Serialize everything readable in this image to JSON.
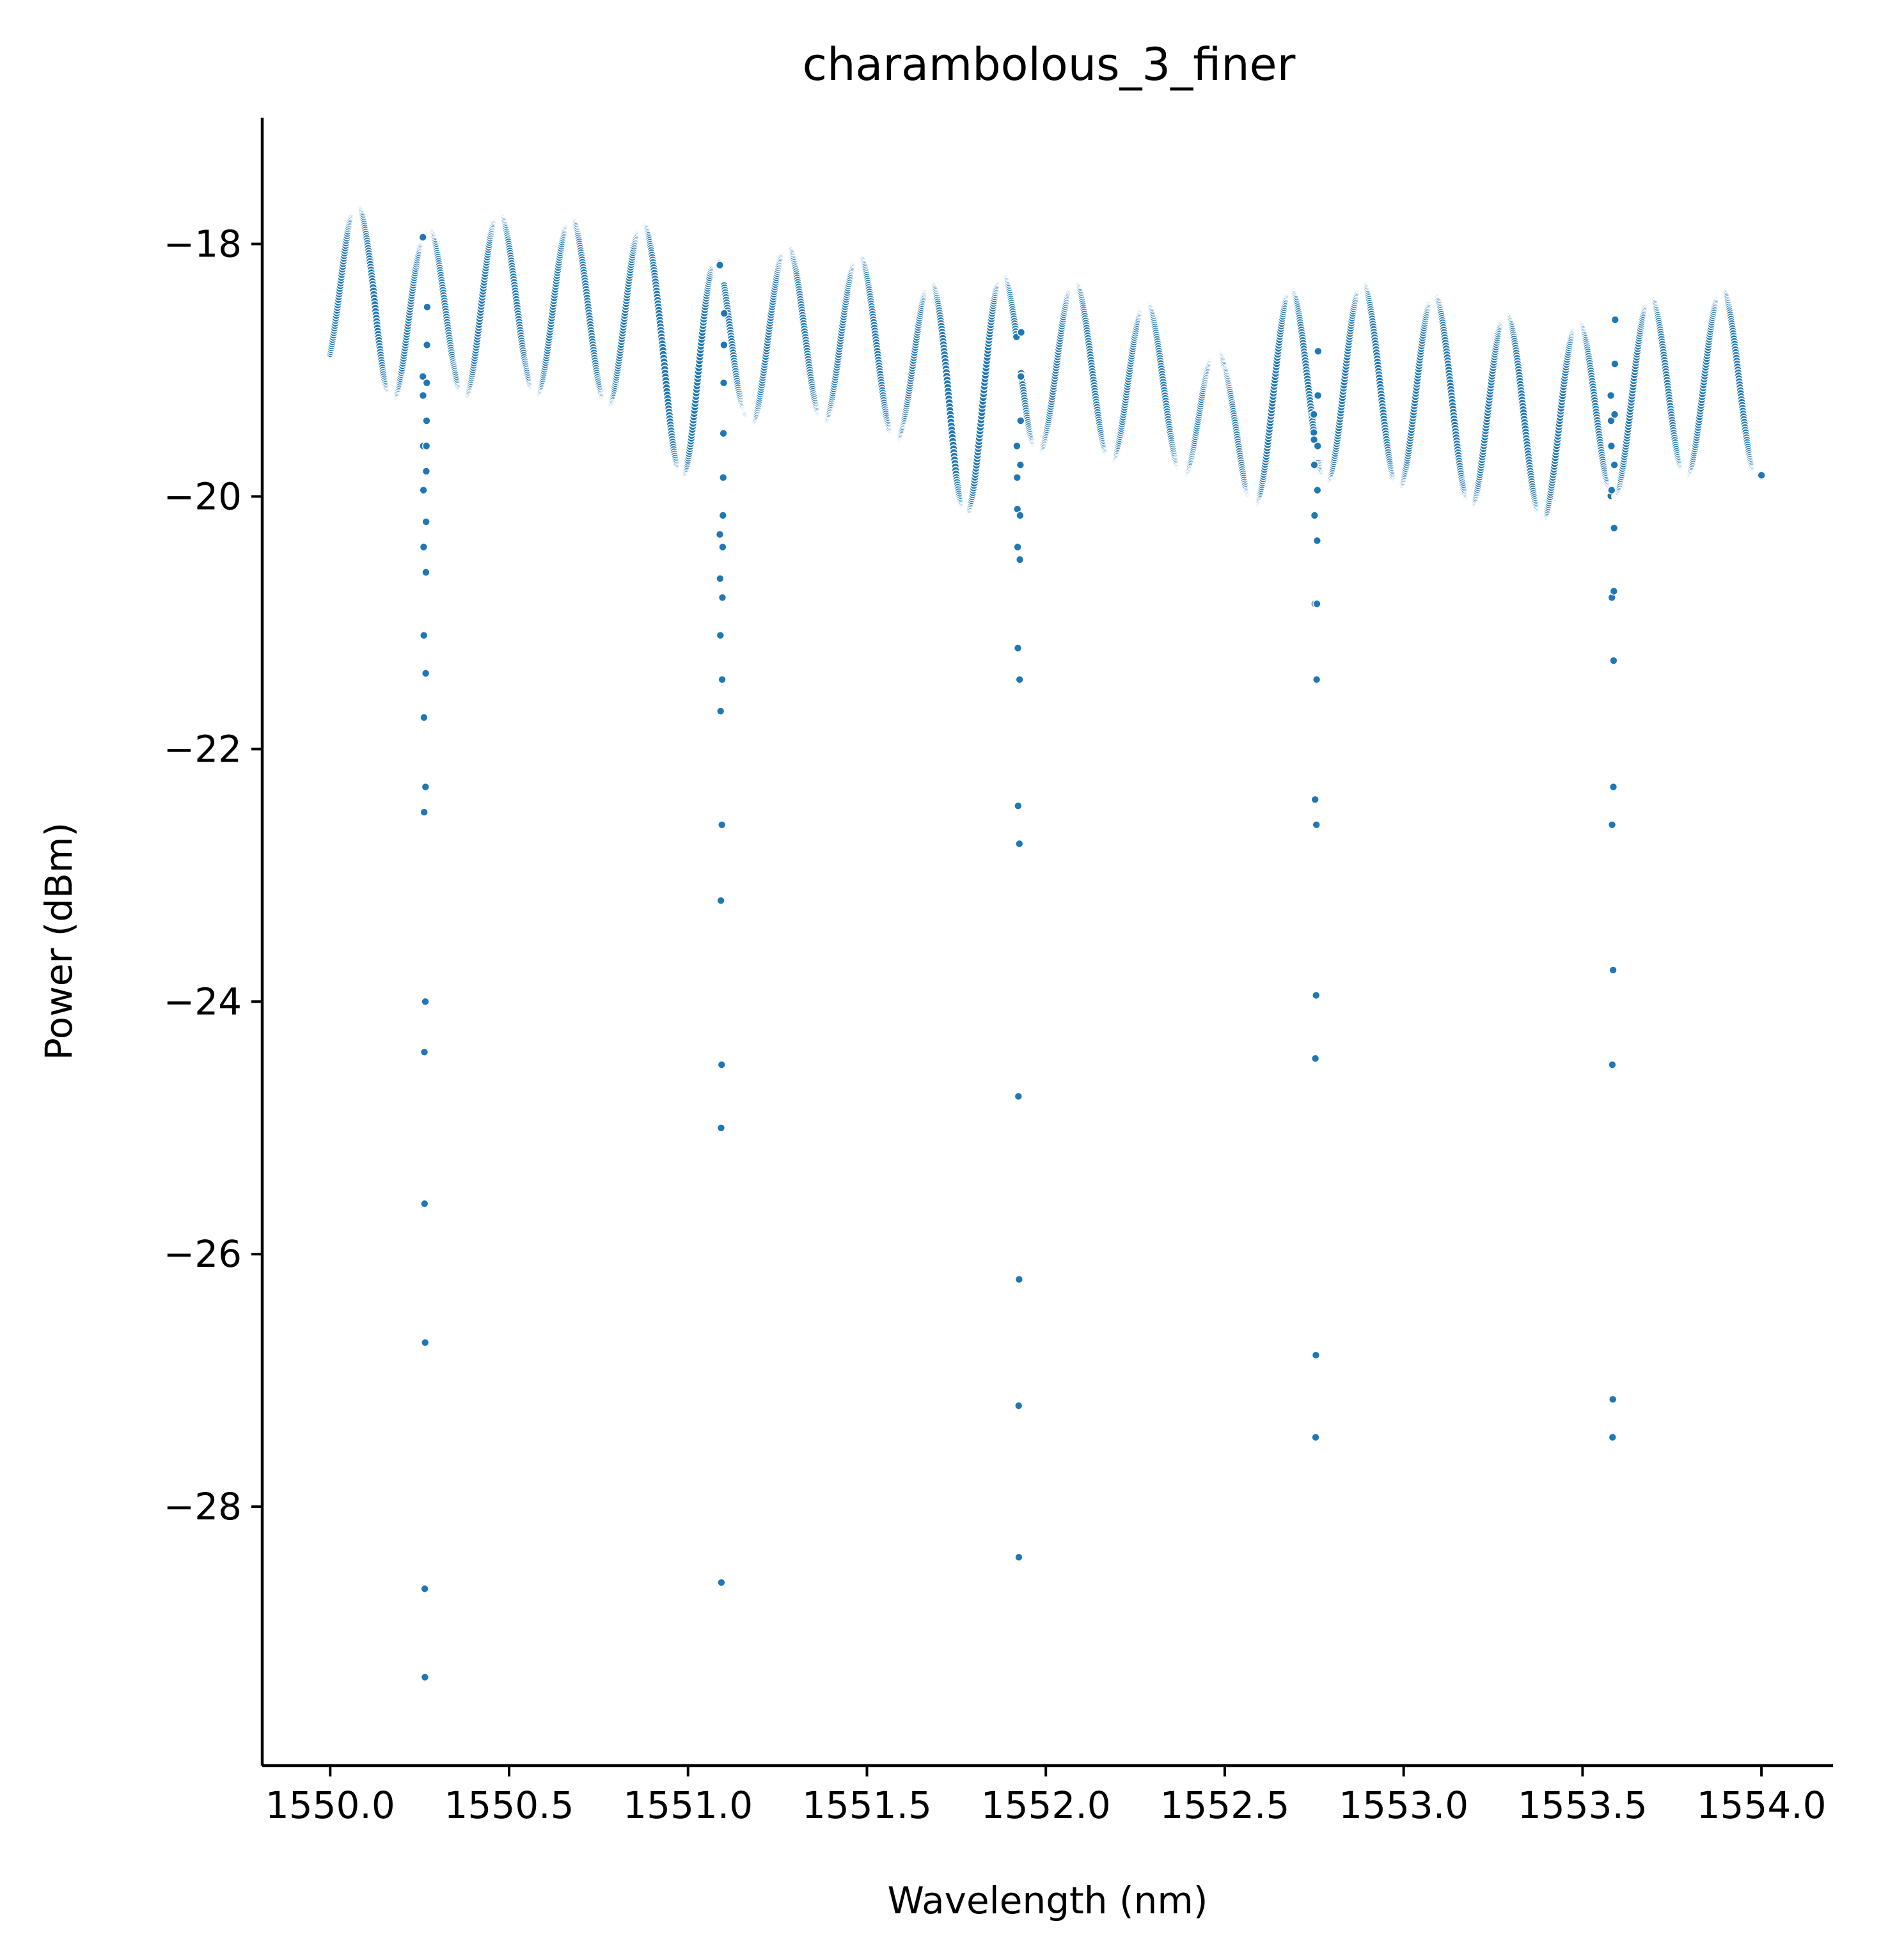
{
  "chart_data": {
    "type": "scatter",
    "title": "charambolous_3_finer",
    "xlabel": "Wavelength (nm)",
    "ylabel": "Power (dBm)",
    "xlim": [
      1549.81,
      1554.2
    ],
    "ylim": [
      -30.05,
      -17.0
    ],
    "x_ticks": [
      {
        "value": 1550.0,
        "label": "1550.0"
      },
      {
        "value": 1550.5,
        "label": "1550.5"
      },
      {
        "value": 1551.0,
        "label": "1551.0"
      },
      {
        "value": 1551.5,
        "label": "1551.5"
      },
      {
        "value": 1552.0,
        "label": "1552.0"
      },
      {
        "value": 1552.5,
        "label": "1552.5"
      },
      {
        "value": 1553.0,
        "label": "1553.0"
      },
      {
        "value": 1553.5,
        "label": "1553.5"
      },
      {
        "value": 1554.0,
        "label": "1554.0"
      }
    ],
    "y_ticks": [
      {
        "value": -18,
        "label": "−18"
      },
      {
        "value": -20,
        "label": "−20"
      },
      {
        "value": -22,
        "label": "−22"
      },
      {
        "value": -24,
        "label": "−24"
      },
      {
        "value": -26,
        "label": "−26"
      },
      {
        "value": -28,
        "label": "−28"
      }
    ],
    "grid": false,
    "marker_color": "#1f77b4",
    "marker_edge_color": "#ffffff",
    "series": [
      {
        "x_start": 1550.0,
        "x_end": 1554.0,
        "x_step": 0.001,
        "envelope_x": [
          1550.0,
          1550.05,
          1550.12,
          1550.2,
          1550.26,
          1550.35,
          1550.42,
          1550.48,
          1550.55,
          1550.62,
          1550.7,
          1550.78,
          1550.85,
          1550.93,
          1551.0,
          1551.06,
          1551.1,
          1551.16,
          1551.24,
          1551.33,
          1551.42,
          1551.52,
          1551.6,
          1551.68,
          1551.75,
          1551.8,
          1551.9,
          1552.0,
          1552.1,
          1552.2,
          1552.32,
          1552.44,
          1552.5,
          1552.56,
          1552.62,
          1552.68,
          1552.78,
          1552.9,
          1553.0,
          1553.1,
          1553.2,
          1553.3,
          1553.4,
          1553.5,
          1553.6,
          1553.7,
          1553.8,
          1553.9,
          1554.0
        ],
        "envelope_center": [
          -18.55,
          -18.45,
          -18.35,
          -18.55,
          -18.6,
          -18.45,
          -18.5,
          -18.55,
          -18.45,
          -18.5,
          -18.55,
          -18.55,
          -18.55,
          -18.7,
          -19.05,
          -19.25,
          -18.95,
          -18.7,
          -18.7,
          -18.7,
          -18.75,
          -18.8,
          -18.9,
          -19.1,
          -19.25,
          -19.15,
          -19.0,
          -18.95,
          -19.0,
          -19.05,
          -19.15,
          -19.3,
          -19.45,
          -19.5,
          -19.3,
          -19.15,
          -19.1,
          -19.1,
          -19.15,
          -19.2,
          -19.3,
          -19.35,
          -19.4,
          -19.35,
          -19.25,
          -19.15,
          -19.1,
          -19.1,
          -19.15
        ],
        "envelope_amplitude": [
          0.55,
          0.7,
          0.8,
          0.75,
          0.7,
          0.75,
          0.8,
          0.8,
          0.75,
          0.75,
          0.75,
          0.75,
          0.75,
          0.8,
          0.95,
          1.1,
          0.9,
          0.75,
          0.7,
          0.7,
          0.7,
          0.7,
          0.7,
          0.8,
          0.95,
          0.95,
          0.75,
          0.7,
          0.7,
          0.7,
          0.65,
          0.6,
          0.55,
          0.6,
          0.75,
          0.8,
          0.8,
          0.8,
          0.8,
          0.8,
          0.8,
          0.8,
          0.8,
          0.75,
          0.75,
          0.75,
          0.75,
          0.75,
          0.72
        ],
        "fringe_period_nm": 0.201,
        "dip_wavelengths": [
          1550.265,
          1551.095,
          1551.925,
          1552.755,
          1553.585
        ],
        "dip_values": [
          [
            -19.05,
            -19.2,
            -19.6,
            -19.95,
            -20.4,
            -21.1,
            -21.75,
            -22.5,
            -24.4,
            -25.6,
            -28.65,
            -29.35,
            -26.7,
            -24.0,
            -22.3,
            -21.4,
            -20.6,
            -20.2,
            -19.8,
            -19.6,
            -19.4,
            -19.1,
            -18.8,
            -18.5
          ],
          [
            -20.3,
            -20.65,
            -21.1,
            -21.7,
            -23.2,
            -25.0,
            -28.6,
            -24.5,
            -22.6,
            -21.45,
            -20.8,
            -20.4,
            -20.15,
            -19.85,
            -19.5,
            -19.1,
            -18.8,
            -18.55
          ],
          [
            -19.6,
            -19.85,
            -20.1,
            -20.4,
            -21.2,
            -22.45,
            -24.75,
            -27.2,
            -28.4,
            -26.2,
            -22.75,
            -21.45,
            -20.5,
            -20.15,
            -19.75,
            -19.4,
            -19.05,
            -18.7
          ],
          [
            -19.35,
            -19.55,
            -19.75,
            -20.15,
            -20.85,
            -22.4,
            -24.45,
            -27.45,
            -26.8,
            -23.95,
            -22.6,
            -21.45,
            -20.85,
            -20.35,
            -19.95,
            -19.6,
            -19.2,
            -18.85
          ],
          [
            -19.2,
            -19.4,
            -19.6,
            -19.95,
            -20.8,
            -22.6,
            -24.5,
            -27.45,
            -27.15,
            -23.75,
            -22.3,
            -21.3,
            -20.75,
            -20.25,
            -19.75,
            -19.35,
            -18.95,
            -18.6
          ]
        ]
      }
    ]
  }
}
